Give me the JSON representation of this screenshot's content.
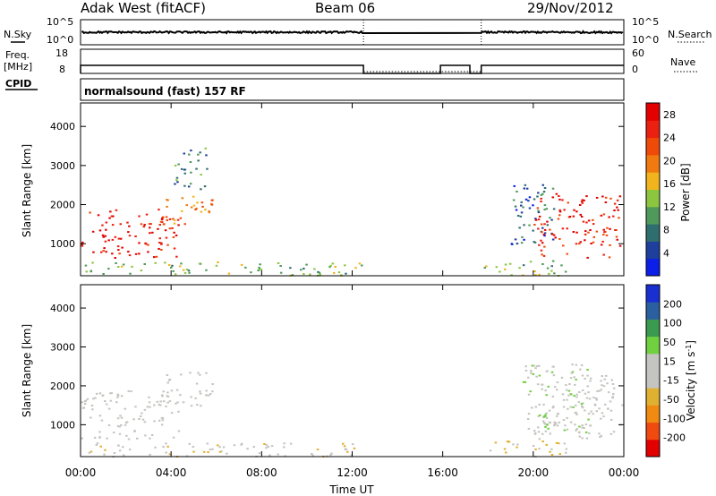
{
  "header": {
    "station": "Adak West (fitACF)",
    "beam": "Beam 06",
    "date": "29/Nov/2012"
  },
  "top_panels": {
    "nsky_label": "N.Sky",
    "nsky_ticks": [
      "10^5",
      "10^0"
    ],
    "nsearch_label": "N.Search",
    "nsearch_ticks": [
      "10^5",
      "10^0"
    ],
    "freq_label": "Freq.",
    "freq_unit": "[MHz]",
    "freq_ticks": [
      "18",
      "8"
    ],
    "nave_label": "Nave",
    "nave_ticks": [
      "60",
      "0"
    ],
    "cpid_label": "CPID",
    "cpid_text": "normalsound (fast) 157 RF"
  },
  "x_axis": {
    "label": "Time UT",
    "ticks": [
      "00:00",
      "04:00",
      "08:00",
      "12:00",
      "16:00",
      "20:00",
      "00:00"
    ],
    "range_hours": [
      0,
      24
    ]
  },
  "colors": {
    "power": [
      "#0b1fe8",
      "#1e3f9c",
      "#2f6e6e",
      "#4f9a5a",
      "#8cc63f",
      "#f1b41c",
      "#f07a10",
      "#f04a08",
      "#ec2010",
      "#e40000"
    ],
    "velocity": [
      "#e20000",
      "#f04a10",
      "#f08a10",
      "#e0b030",
      "#c4c4c0",
      "#c4c4c0",
      "#70d040",
      "#3a9a50",
      "#2a5fa0",
      "#1a2fd0"
    ]
  },
  "chart_data": [
    {
      "type": "heatmap",
      "name": "power-panel",
      "ylabel": "Slant Range [km]",
      "yticks": [
        1000,
        2000,
        3000,
        4000
      ],
      "ylim": [
        180,
        4600
      ],
      "xlim": [
        0,
        24
      ],
      "colorbar_label": "Power [dB]",
      "colorbar_ticks": [
        4,
        8,
        12,
        16,
        20,
        24,
        28
      ],
      "colorbar_range": [
        0,
        30
      ],
      "gaps": [
        [
          12.5,
          17.7
        ]
      ],
      "regions": [
        {
          "t0": 0.0,
          "t1": 4.3,
          "r0": 650,
          "r1": 1900,
          "value": 28
        },
        {
          "t0": 3.5,
          "t1": 5.8,
          "r0": 1500,
          "r1": 2300,
          "value": 20
        },
        {
          "t0": 4.1,
          "t1": 5.6,
          "r0": 2400,
          "r1": 3500,
          "value": 8
        },
        {
          "t0": 0.1,
          "t1": 12.4,
          "r0": 200,
          "r1": 550,
          "value": 12
        },
        {
          "t0": 19.0,
          "t1": 21.0,
          "r0": 1000,
          "r1": 2700,
          "value": 6
        },
        {
          "t0": 20.0,
          "t1": 23.9,
          "r0": 650,
          "r1": 2300,
          "value": 28
        },
        {
          "t0": 17.8,
          "t1": 21.5,
          "r0": 200,
          "r1": 600,
          "value": 12
        }
      ]
    },
    {
      "type": "heatmap",
      "name": "velocity-panel",
      "ylabel": "Slant Range [km]",
      "yticks": [
        1000,
        2000,
        3000,
        4000
      ],
      "ylim": [
        180,
        4600
      ],
      "xlim": [
        0,
        24
      ],
      "colorbar_label": "Velocity [m s^-1]",
      "colorbar_ticks": [
        200,
        100,
        50,
        15,
        -15,
        -50,
        -100,
        -200
      ],
      "gaps": [
        [
          12.5,
          17.7
        ]
      ],
      "regions": [
        {
          "t0": 0.0,
          "t1": 4.3,
          "r0": 650,
          "r1": 1900,
          "value": 0
        },
        {
          "t0": 3.5,
          "t1": 5.8,
          "r0": 1500,
          "r1": 2400,
          "value": 0
        },
        {
          "t0": 0.1,
          "t1": 12.4,
          "r0": 200,
          "r1": 550,
          "value": -40
        },
        {
          "t0": 20.0,
          "t1": 23.9,
          "r0": 650,
          "r1": 2300,
          "value": 0
        },
        {
          "t0": 19.5,
          "t1": 22.5,
          "r0": 800,
          "r1": 2600,
          "value": 40
        },
        {
          "t0": 17.8,
          "t1": 21.5,
          "r0": 200,
          "r1": 600,
          "value": -60
        }
      ]
    }
  ]
}
